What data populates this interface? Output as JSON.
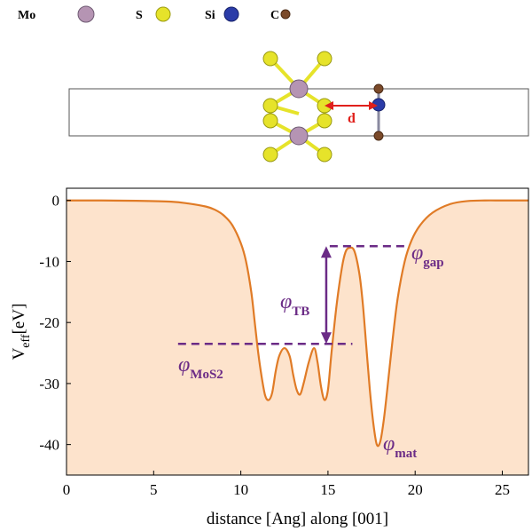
{
  "legend": [
    {
      "label": "Mo",
      "color": "#b594b3"
    },
    {
      "label": "S",
      "color": "#e6e32a"
    },
    {
      "label": "Si",
      "color": "#2b3ca8"
    },
    {
      "label": "C",
      "color": "#7b4a2a"
    }
  ],
  "structure": {
    "distance_label": "d"
  },
  "chart_data": {
    "type": "area",
    "title": "",
    "xlabel": "distance [Ang] along [001]",
    "ylabel_main": "V",
    "ylabel_sub": "eff",
    "ylabel_unit": "[eV]",
    "xlim": [
      0,
      26.5
    ],
    "ylim": [
      -45,
      2
    ],
    "xticks": [
      0,
      5,
      10,
      15,
      20,
      25
    ],
    "yticks": [
      0,
      -10,
      -20,
      -30,
      -40
    ],
    "grid": false,
    "fill_color": "#fde3cc",
    "line_color": "#e07b26",
    "x": [
      0,
      2,
      4,
      6,
      7,
      8,
      8.5,
      9,
      9.5,
      10,
      10.3,
      10.6,
      10.8,
      11.0,
      11.2,
      11.4,
      11.6,
      11.8,
      12.0,
      12.2,
      12.5,
      12.8,
      13.0,
      13.2,
      13.4,
      13.6,
      13.9,
      14.2,
      14.4,
      14.6,
      14.8,
      15.0,
      15.2,
      15.5,
      15.8,
      16.0,
      16.2,
      16.5,
      16.8,
      17.0,
      17.2,
      17.4,
      17.6,
      17.8,
      18.0,
      18.2,
      18.4,
      18.7,
      19.0,
      19.4,
      19.8,
      20.3,
      21.0,
      22.0,
      23.0,
      24.0,
      25.0,
      26.5
    ],
    "y": [
      0,
      0,
      -0.05,
      -0.2,
      -0.5,
      -1.0,
      -1.5,
      -2.4,
      -4,
      -7,
      -10,
      -15,
      -20,
      -25,
      -29,
      -32,
      -32.7,
      -31.5,
      -28,
      -25.5,
      -24.2,
      -25.5,
      -28.5,
      -31,
      -31.8,
      -30,
      -26.5,
      -24.2,
      -26.5,
      -30.5,
      -32.7,
      -31,
      -25,
      -17,
      -11,
      -8.5,
      -7.8,
      -8.2,
      -12,
      -17,
      -24,
      -31,
      -36.5,
      -40,
      -39.5,
      -36,
      -31,
      -23,
      -16,
      -10,
      -6.5,
      -4,
      -2,
      -0.6,
      -0.1,
      0,
      0,
      0
    ],
    "annotations": {
      "phi_gap": {
        "label": "φ",
        "sub": "gap",
        "y": -7.5,
        "x_start": 15.1,
        "x_end": 19.5
      },
      "phi_MoS2": {
        "label": "φ",
        "sub": "MoS2",
        "y": -23.5,
        "x_start": 6.4,
        "x_end": 16.4
      },
      "phi_TB": {
        "label": "φ",
        "sub": "TB",
        "x": 14.9,
        "y_top": -7.5,
        "y_bottom": -23.5
      },
      "phi_mat": {
        "label": "φ",
        "sub": "mat",
        "x": 17.9,
        "y": -40.5
      }
    }
  }
}
